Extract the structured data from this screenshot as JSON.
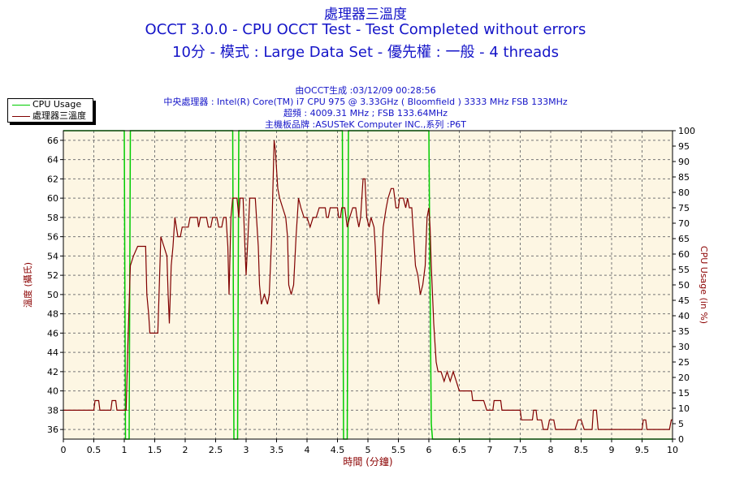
{
  "header": {
    "title_cn": "處理器三溫度",
    "title_main": "OCCT 3.0.0 - CPU OCCT Test - Test Completed without errors",
    "title_sub": "10分 - 模式 : Large Data Set - 優先權 : 一般 - 4 threads",
    "info": [
      "由OCCT生成 :03/12/09 00:28:56",
      "中央處理器 : Intel(R) Core(TM) i7 CPU 975 @ 3.33GHz ( Bloomfield ) 3333 MHz FSB 133MHz",
      "超頻 : 4009.31 MHz ; FSB 133.64MHz",
      "主機板品牌 :ASUSTeK Computer INC.,系列 :P6T"
    ]
  },
  "legend": [
    {
      "label": "CPU Usage",
      "color": "#00cc00"
    },
    {
      "label": "處理器三溫度",
      "color": "#800000"
    }
  ],
  "colors": {
    "plot_bg": "#fdf6e3",
    "temp": "#800000",
    "cpu": "#00cc00",
    "title": "#1414c8",
    "axis_label": "#8b0000"
  },
  "chart_data": {
    "type": "line",
    "xlabel": "時間 (分鐘)",
    "ylabel": "溫度 (攝氏)",
    "y2label": "CPU Usage (in %)",
    "xlim": [
      0,
      10
    ],
    "ylim": [
      35,
      67
    ],
    "y2lim": [
      0,
      100
    ],
    "xticks": [
      0,
      0.5,
      1,
      1.5,
      2,
      2.5,
      3,
      3.5,
      4,
      4.5,
      5,
      5.5,
      6,
      6.5,
      7,
      7.5,
      8,
      8.5,
      9,
      9.5,
      10
    ],
    "yticks": [
      36,
      38,
      40,
      42,
      44,
      46,
      48,
      50,
      52,
      54,
      56,
      58,
      60,
      62,
      64,
      66
    ],
    "y2ticks": [
      0,
      5,
      10,
      15,
      20,
      25,
      30,
      35,
      40,
      45,
      50,
      55,
      60,
      65,
      70,
      75,
      80,
      85,
      90,
      95,
      100
    ],
    "grid": true,
    "legend_position": "top-left",
    "series": [
      {
        "name": "處理器三溫度",
        "axis": "left",
        "points": [
          [
            0,
            38
          ],
          [
            0.5,
            38
          ],
          [
            0.52,
            39
          ],
          [
            0.58,
            39
          ],
          [
            0.6,
            38
          ],
          [
            0.78,
            38
          ],
          [
            0.8,
            39
          ],
          [
            0.86,
            39
          ],
          [
            0.88,
            38
          ],
          [
            1.03,
            38
          ],
          [
            1.06,
            45
          ],
          [
            1.1,
            53
          ],
          [
            1.15,
            54
          ],
          [
            1.22,
            55
          ],
          [
            1.35,
            55
          ],
          [
            1.37,
            50
          ],
          [
            1.4,
            48
          ],
          [
            1.42,
            46
          ],
          [
            1.55,
            46
          ],
          [
            1.57,
            50
          ],
          [
            1.6,
            56
          ],
          [
            1.65,
            55
          ],
          [
            1.7,
            54
          ],
          [
            1.72,
            50
          ],
          [
            1.74,
            47
          ],
          [
            1.77,
            53
          ],
          [
            1.8,
            55
          ],
          [
            1.83,
            58
          ],
          [
            1.88,
            56
          ],
          [
            1.92,
            56
          ],
          [
            1.95,
            57
          ],
          [
            2.05,
            57
          ],
          [
            2.08,
            58
          ],
          [
            2.2,
            58
          ],
          [
            2.22,
            57
          ],
          [
            2.25,
            58
          ],
          [
            2.35,
            58
          ],
          [
            2.38,
            57
          ],
          [
            2.42,
            57
          ],
          [
            2.45,
            58
          ],
          [
            2.52,
            58
          ],
          [
            2.55,
            57
          ],
          [
            2.6,
            57
          ],
          [
            2.63,
            58
          ],
          [
            2.67,
            58
          ],
          [
            2.7,
            55
          ],
          [
            2.72,
            50
          ],
          [
            2.75,
            58
          ],
          [
            2.78,
            60
          ],
          [
            2.85,
            60
          ],
          [
            2.88,
            58
          ],
          [
            2.9,
            60
          ],
          [
            2.95,
            60
          ],
          [
            2.98,
            55
          ],
          [
            3.0,
            52
          ],
          [
            3.03,
            56
          ],
          [
            3.06,
            60
          ],
          [
            3.1,
            60
          ],
          [
            3.15,
            60
          ],
          [
            3.2,
            55
          ],
          [
            3.22,
            51
          ],
          [
            3.25,
            49
          ],
          [
            3.3,
            50
          ],
          [
            3.35,
            49
          ],
          [
            3.38,
            50
          ],
          [
            3.42,
            56
          ],
          [
            3.46,
            66
          ],
          [
            3.48,
            65
          ],
          [
            3.52,
            61
          ],
          [
            3.55,
            60
          ],
          [
            3.6,
            59
          ],
          [
            3.65,
            58
          ],
          [
            3.68,
            56
          ],
          [
            3.7,
            51
          ],
          [
            3.74,
            50
          ],
          [
            3.78,
            51
          ],
          [
            3.82,
            56
          ],
          [
            3.86,
            60
          ],
          [
            3.9,
            59
          ],
          [
            3.95,
            58
          ],
          [
            4.0,
            58
          ],
          [
            4.05,
            57
          ],
          [
            4.1,
            58
          ],
          [
            4.15,
            58
          ],
          [
            4.2,
            59
          ],
          [
            4.3,
            59
          ],
          [
            4.32,
            58
          ],
          [
            4.35,
            58
          ],
          [
            4.38,
            59
          ],
          [
            4.5,
            59
          ],
          [
            4.52,
            58
          ],
          [
            4.55,
            58
          ],
          [
            4.57,
            59
          ],
          [
            4.62,
            59
          ],
          [
            4.64,
            58
          ],
          [
            4.66,
            57
          ],
          [
            4.7,
            58
          ],
          [
            4.75,
            59
          ],
          [
            4.8,
            59
          ],
          [
            4.82,
            58
          ],
          [
            4.85,
            57
          ],
          [
            4.88,
            58
          ],
          [
            4.92,
            62
          ],
          [
            4.95,
            62
          ],
          [
            4.98,
            58
          ],
          [
            5.02,
            57
          ],
          [
            5.05,
            58
          ],
          [
            5.1,
            57
          ],
          [
            5.12,
            55
          ],
          [
            5.15,
            50
          ],
          [
            5.18,
            49
          ],
          [
            5.2,
            51
          ],
          [
            5.25,
            57
          ],
          [
            5.3,
            59
          ],
          [
            5.33,
            60
          ],
          [
            5.38,
            61
          ],
          [
            5.42,
            61
          ],
          [
            5.44,
            60
          ],
          [
            5.46,
            59
          ],
          [
            5.5,
            59
          ],
          [
            5.52,
            60
          ],
          [
            5.58,
            60
          ],
          [
            5.62,
            59
          ],
          [
            5.65,
            60
          ],
          [
            5.68,
            59
          ],
          [
            5.72,
            59
          ],
          [
            5.75,
            56
          ],
          [
            5.78,
            53
          ],
          [
            5.82,
            52
          ],
          [
            5.86,
            50
          ],
          [
            5.9,
            51
          ],
          [
            5.94,
            53
          ],
          [
            5.97,
            58
          ],
          [
            6.0,
            59
          ],
          [
            6.02,
            57
          ],
          [
            6.04,
            53
          ],
          [
            6.06,
            50
          ],
          [
            6.08,
            47
          ],
          [
            6.1,
            45
          ],
          [
            6.12,
            43
          ],
          [
            6.15,
            42
          ],
          [
            6.2,
            42
          ],
          [
            6.25,
            41
          ],
          [
            6.3,
            42
          ],
          [
            6.35,
            41
          ],
          [
            6.4,
            42
          ],
          [
            6.45,
            41
          ],
          [
            6.5,
            40
          ],
          [
            6.7,
            40
          ],
          [
            6.72,
            39
          ],
          [
            6.9,
            39
          ],
          [
            6.95,
            38
          ],
          [
            7.05,
            38
          ],
          [
            7.07,
            39
          ],
          [
            7.18,
            39
          ],
          [
            7.2,
            38
          ],
          [
            7.5,
            38
          ],
          [
            7.52,
            37
          ],
          [
            7.7,
            37
          ],
          [
            7.72,
            38
          ],
          [
            7.76,
            38
          ],
          [
            7.78,
            37
          ],
          [
            7.85,
            37
          ],
          [
            7.88,
            36
          ],
          [
            7.95,
            36
          ],
          [
            7.98,
            37
          ],
          [
            8.05,
            37
          ],
          [
            8.08,
            36
          ],
          [
            8.4,
            36
          ],
          [
            8.45,
            37
          ],
          [
            8.5,
            37
          ],
          [
            8.55,
            36
          ],
          [
            8.68,
            36
          ],
          [
            8.7,
            38
          ],
          [
            8.75,
            38
          ],
          [
            8.78,
            36
          ],
          [
            9.5,
            36
          ],
          [
            9.52,
            37
          ],
          [
            9.56,
            37
          ],
          [
            9.58,
            36
          ],
          [
            9.95,
            36
          ],
          [
            9.98,
            37
          ],
          [
            10,
            37
          ]
        ]
      },
      {
        "name": "CPU Usage",
        "axis": "right",
        "points": [
          [
            0,
            100
          ],
          [
            1.0,
            100
          ],
          [
            1.02,
            0
          ],
          [
            1.08,
            0
          ],
          [
            1.1,
            100
          ],
          [
            2.78,
            100
          ],
          [
            2.8,
            0
          ],
          [
            2.86,
            0
          ],
          [
            2.88,
            100
          ],
          [
            4.58,
            100
          ],
          [
            4.6,
            0
          ],
          [
            4.66,
            0
          ],
          [
            4.68,
            100
          ],
          [
            6.0,
            100
          ],
          [
            6.02,
            50
          ],
          [
            6.04,
            5
          ],
          [
            6.06,
            0
          ],
          [
            10,
            0
          ]
        ]
      }
    ]
  }
}
